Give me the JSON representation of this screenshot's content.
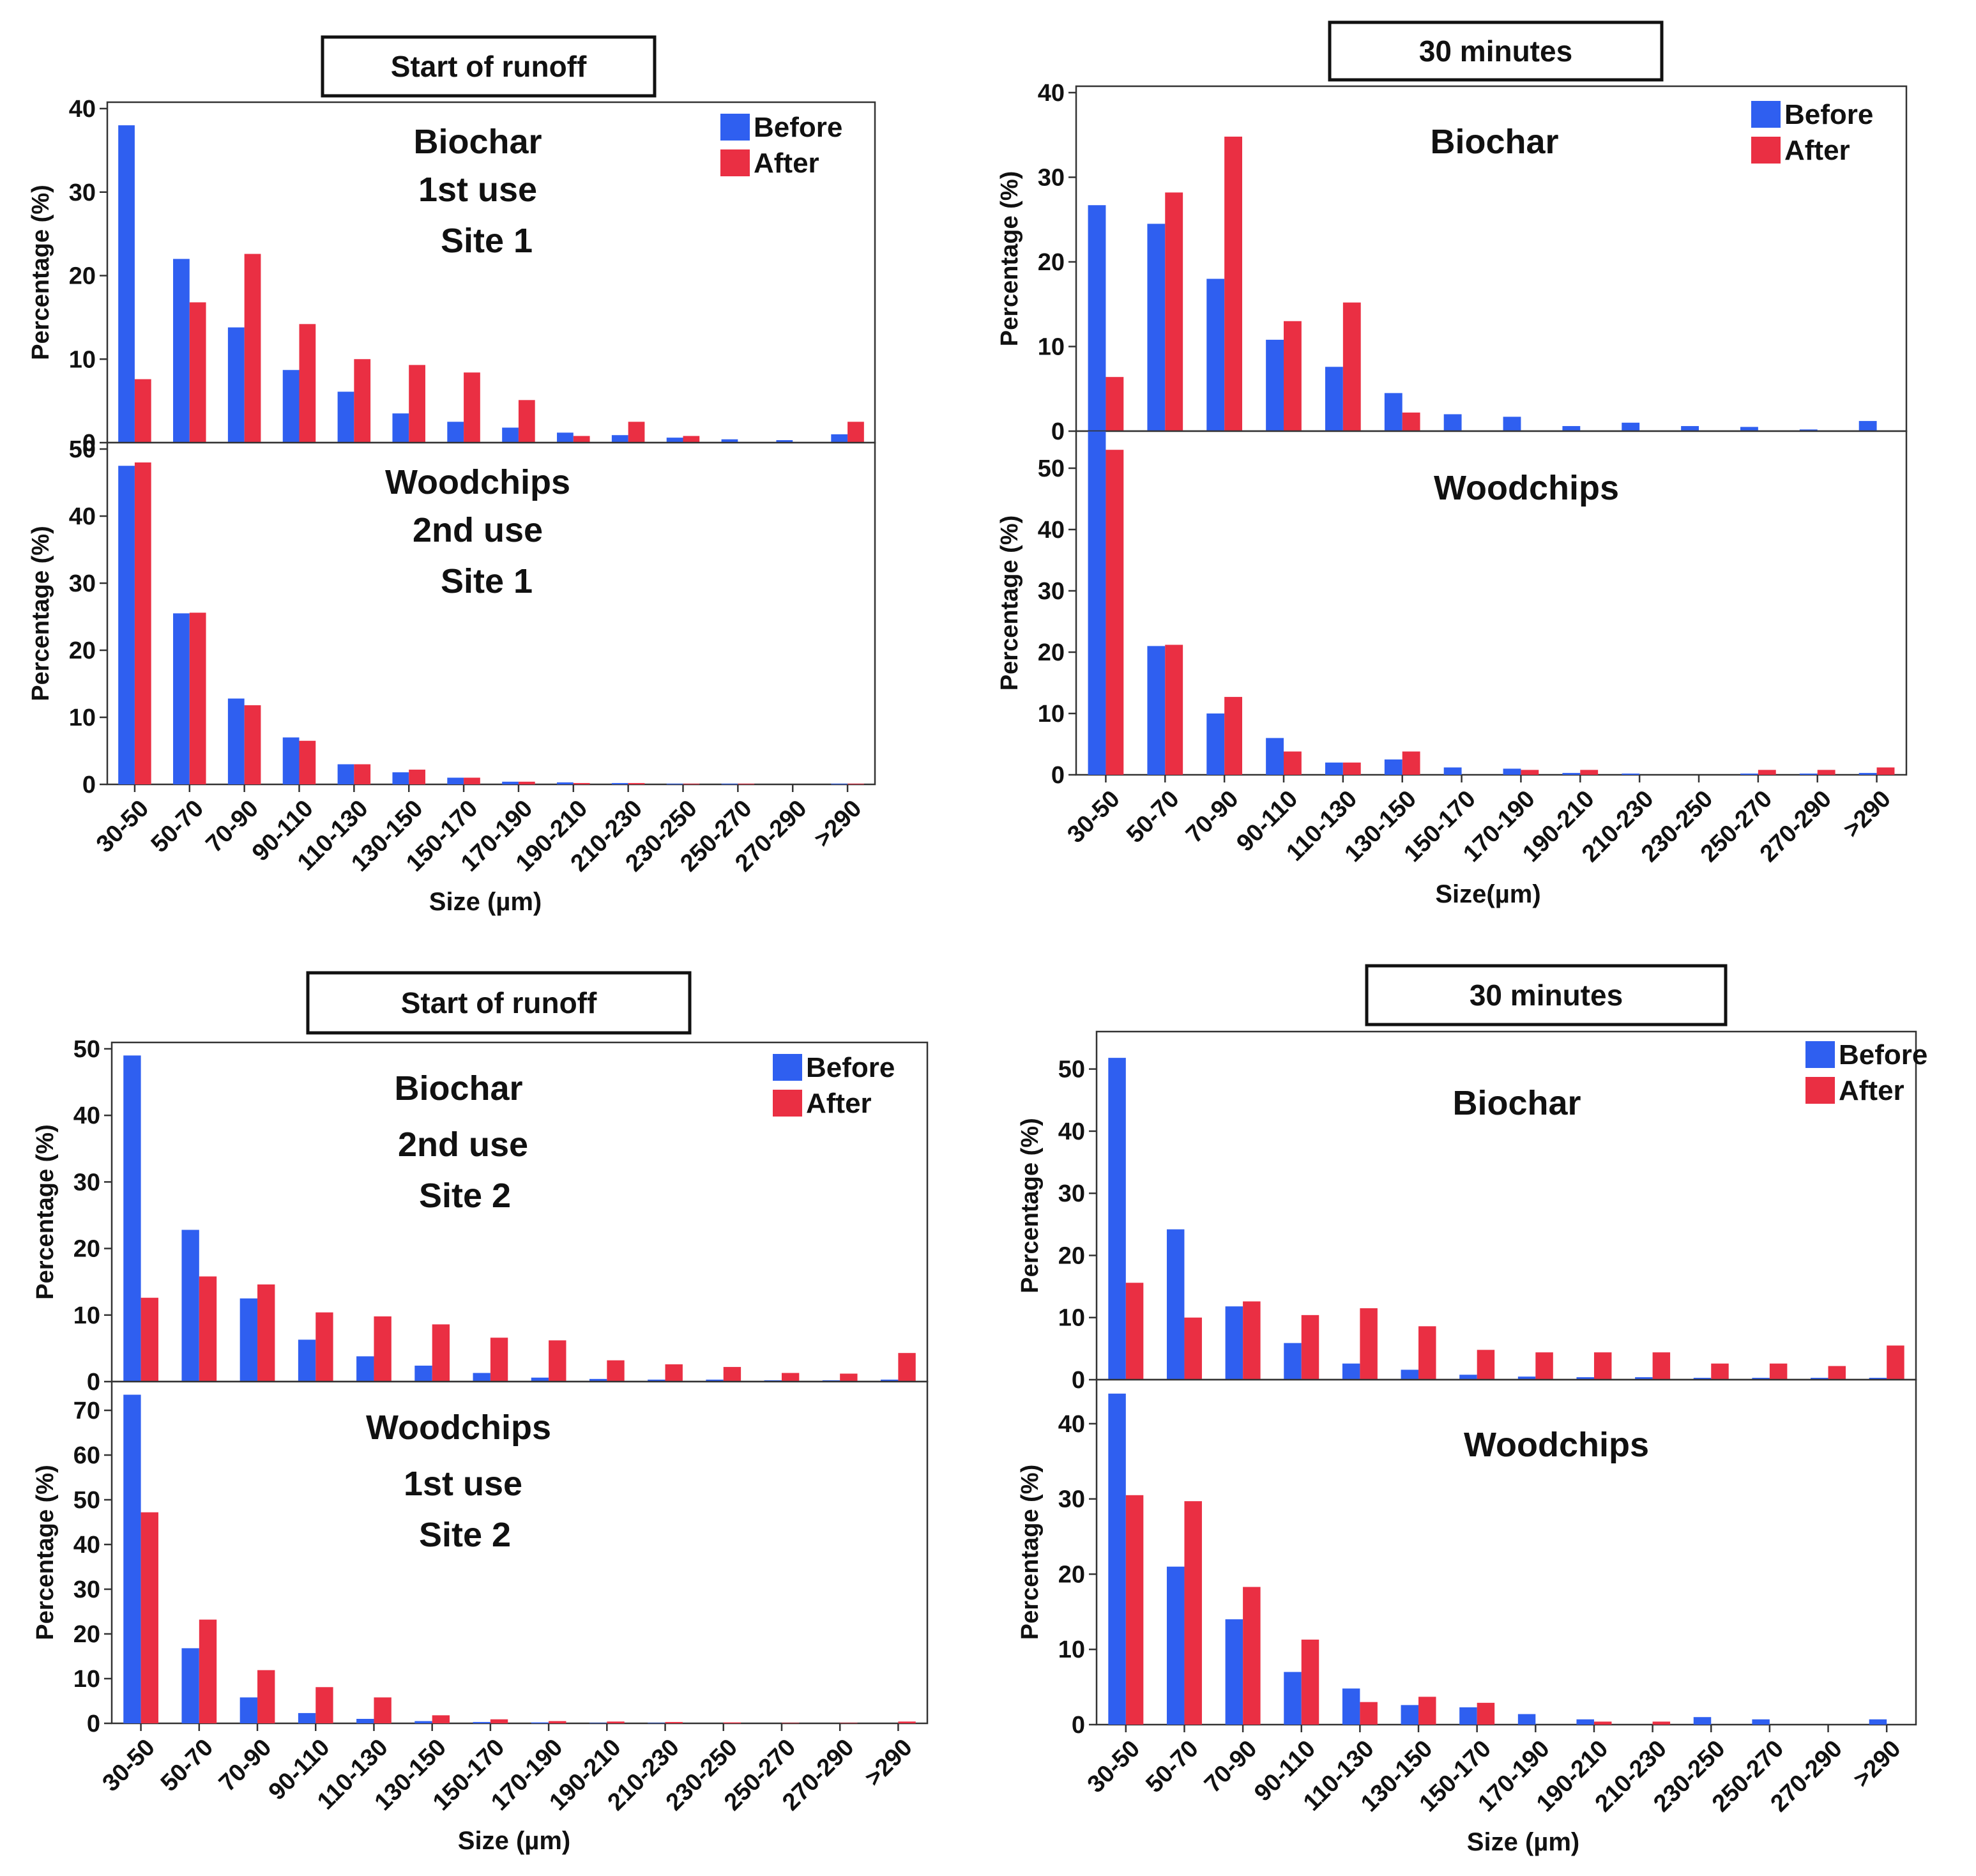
{
  "colors": {
    "before": "#2f5ff0",
    "after": "#ea2f43",
    "axis": "#333333",
    "text": "#111111"
  },
  "chart_data": [
    {
      "type": "bar",
      "title_box": "Start of runoff",
      "xlabel": "Size (µm)",
      "categories": [
        "30-50",
        "50-70",
        "70-90",
        "90-110",
        "110-130",
        "130-150",
        "150-170",
        "170-190",
        "190-210",
        "210-230",
        "230-250",
        "250-270",
        "270-290",
        ">290"
      ],
      "legend": [
        "Before",
        "After"
      ],
      "panels": [
        {
          "label_lines": [
            "Biochar",
            "1st use",
            "Site 1"
          ],
          "ylabel": "Percentage (%)",
          "ylim": [
            0,
            40
          ],
          "yticks": [
            0,
            10,
            20,
            30,
            40
          ],
          "series": [
            {
              "name": "Before",
              "values": [
                38,
                22,
                13.8,
                8.7,
                6.1,
                3.5,
                2.5,
                1.8,
                1.2,
                0.9,
                0.6,
                0.4,
                0.3,
                1
              ]
            },
            {
              "name": "After",
              "values": [
                7.6,
                16.8,
                22.6,
                14.2,
                10,
                9.3,
                8.4,
                5.1,
                0.8,
                2.5,
                0.8,
                0,
                0,
                2.5
              ]
            }
          ]
        },
        {
          "label_lines": [
            "Woodchips",
            "2nd use",
            "Site 1"
          ],
          "ylabel": "Percentage (%)",
          "ylim": [
            0,
            50
          ],
          "yticks": [
            0,
            10,
            20,
            30,
            40,
            50
          ],
          "series": [
            {
              "name": "Before",
              "values": [
                47.5,
                25.5,
                12.8,
                7,
                3,
                1.8,
                1,
                0.4,
                0.3,
                0.2,
                0.1,
                0.1,
                0,
                0.1
              ]
            },
            {
              "name": "After",
              "values": [
                48,
                25.6,
                11.8,
                6.5,
                3,
                2.2,
                1,
                0.4,
                0.2,
                0.2,
                0.1,
                0.1,
                0,
                0.1
              ]
            }
          ]
        }
      ]
    },
    {
      "type": "bar",
      "title_box": "30 minutes",
      "xlabel": "Size(µm)",
      "categories": [
        "30-50",
        "50-70",
        "70-90",
        "90-110",
        "110-130",
        "130-150",
        "150-170",
        "170-190",
        "190-210",
        "210-230",
        "230-250",
        "250-270",
        "270-290",
        ">290"
      ],
      "legend": [
        "Before",
        "After"
      ],
      "panels": [
        {
          "label_lines": [
            "Biochar"
          ],
          "ylabel": "Percentage (%)",
          "ylim": [
            0,
            40
          ],
          "yticks": [
            0,
            10,
            20,
            30,
            40
          ],
          "series": [
            {
              "name": "Before",
              "values": [
                26.7,
                24.5,
                18,
                10.8,
                7.6,
                4.5,
                2,
                1.7,
                0.6,
                1,
                0.6,
                0.5,
                0.2,
                1.2
              ]
            },
            {
              "name": "After",
              "values": [
                6.4,
                28.2,
                34.8,
                13,
                15.2,
                2.2,
                0,
                0,
                0,
                0,
                0,
                0,
                0,
                0
              ]
            }
          ]
        },
        {
          "label_lines": [
            "Woodchips"
          ],
          "ylabel": "Percentage (%)",
          "ylim": [
            0,
            55
          ],
          "yticks": [
            0,
            10,
            20,
            30,
            40,
            50
          ],
          "series": [
            {
              "name": "Before",
              "values": [
                56,
                21,
                10,
                6,
                2,
                2.5,
                1.2,
                1,
                0.3,
                0.2,
                0,
                0.2,
                0.2,
                0.3
              ]
            },
            {
              "name": "After",
              "values": [
                53,
                21.2,
                12.7,
                3.8,
                2,
                3.8,
                0,
                0.8,
                0.8,
                0,
                0,
                0.8,
                0.8,
                1.2
              ]
            }
          ]
        }
      ]
    },
    {
      "type": "bar",
      "title_box": "Start of runoff",
      "xlabel": "Size (µm)",
      "categories": [
        "30-50",
        "50-70",
        "70-90",
        "90-110",
        "110-130",
        "130-150",
        "150-170",
        "170-190",
        "190-210",
        "210-230",
        "230-250",
        "250-270",
        "270-290",
        ">290"
      ],
      "legend": [
        "Before",
        "After"
      ],
      "panels": [
        {
          "label_lines": [
            "Biochar",
            "2nd use",
            "Site 2"
          ],
          "ylabel": "Percentage (%)",
          "ylim": [
            0,
            50
          ],
          "yticks": [
            0,
            10,
            20,
            30,
            40,
            50
          ],
          "series": [
            {
              "name": "Before",
              "values": [
                49,
                22.8,
                12.5,
                6.3,
                3.8,
                2.4,
                1.3,
                0.6,
                0.4,
                0.3,
                0.3,
                0.2,
                0.2,
                0.3
              ]
            },
            {
              "name": "After",
              "values": [
                12.6,
                15.8,
                14.6,
                10.4,
                9.8,
                8.6,
                6.6,
                6.2,
                3.2,
                2.6,
                2.2,
                1.3,
                1.2,
                4.3
              ]
            }
          ]
        },
        {
          "label_lines": [
            "Woodchips",
            "1st use",
            "Site 2"
          ],
          "ylabel": "Percentage (%)",
          "ylim": [
            0,
            75
          ],
          "yticks": [
            0,
            10,
            20,
            30,
            40,
            50,
            60,
            70
          ],
          "series": [
            {
              "name": "Before",
              "values": [
                73.5,
                16.8,
                5.8,
                2.3,
                1,
                0.5,
                0.3,
                0.2,
                0.1,
                0.1,
                0,
                0,
                0,
                0
              ]
            },
            {
              "name": "After",
              "values": [
                47.2,
                23.2,
                11.9,
                8.1,
                5.8,
                1.8,
                0.9,
                0.5,
                0.4,
                0.3,
                0.2,
                0.1,
                0.1,
                0.4
              ]
            }
          ]
        }
      ]
    },
    {
      "type": "bar",
      "title_box": "30 minutes",
      "xlabel": "Size (µm)",
      "categories": [
        "30-50",
        "50-70",
        "70-90",
        "90-110",
        "110-130",
        "130-150",
        "150-170",
        "170-190",
        "190-210",
        "210-230",
        "230-250",
        "250-270",
        "270-290",
        ">290"
      ],
      "legend": [
        "Before",
        "After"
      ],
      "panels": [
        {
          "label_lines": [
            "Biochar"
          ],
          "ylabel": "Percentage (%)",
          "ylim": [
            0,
            55
          ],
          "yticks": [
            0,
            10,
            20,
            30,
            40,
            50
          ],
          "series": [
            {
              "name": "Before",
              "values": [
                51.8,
                24.2,
                11.8,
                5.9,
                2.6,
                1.6,
                0.8,
                0.5,
                0.4,
                0.4,
                0.3,
                0.3,
                0.3,
                0.3
              ]
            },
            {
              "name": "After",
              "values": [
                15.6,
                10,
                12.6,
                10.4,
                11.5,
                8.6,
                4.8,
                4.4,
                4.4,
                4.4,
                2.6,
                2.6,
                2.2,
                5.5
              ]
            }
          ]
        },
        {
          "label_lines": [
            "Woodchips"
          ],
          "ylabel": "Percentage (%)",
          "ylim": [
            0,
            45
          ],
          "yticks": [
            0,
            10,
            20,
            30,
            40
          ],
          "series": [
            {
              "name": "Before",
              "values": [
                44,
                21,
                14,
                7,
                4.8,
                2.6,
                2.3,
                1.4,
                0.7,
                0,
                1,
                0.7,
                0,
                0.7
              ]
            },
            {
              "name": "After",
              "values": [
                30.5,
                29.7,
                18.3,
                11.3,
                3,
                3.7,
                2.9,
                0,
                0.4,
                0.4,
                0,
                0,
                0,
                0
              ]
            }
          ]
        }
      ]
    }
  ]
}
